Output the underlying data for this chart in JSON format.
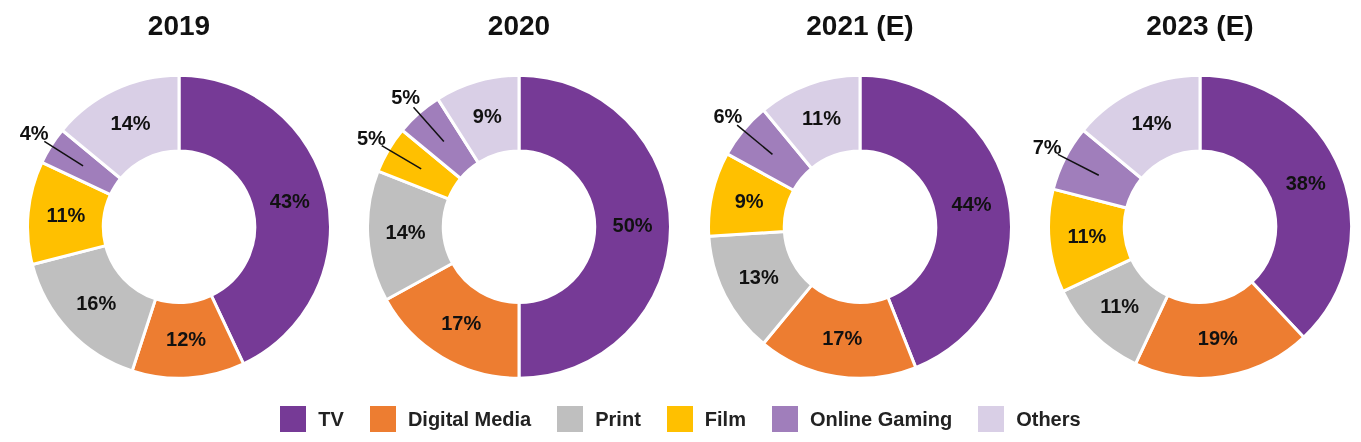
{
  "chart_data": [
    {
      "type": "donut",
      "title": "2019",
      "categories": [
        "TV",
        "Digital Media",
        "Print",
        "Film",
        "Online Gaming",
        "Others"
      ],
      "values": [
        43,
        12,
        16,
        11,
        4,
        14
      ],
      "value_labels": [
        "43%",
        "12%",
        "16%",
        "11%",
        "4%",
        "14%"
      ],
      "colors": [
        "#763a96",
        "#ed7d31",
        "#bfbfbf",
        "#ffc000",
        "#a07ebb",
        "#d9cfe6"
      ],
      "legend": "bottom"
    },
    {
      "type": "donut",
      "title": "2020",
      "categories": [
        null,
        null,
        null,
        null,
        null,
        null
      ],
      "values": [
        50,
        17,
        14,
        5,
        5,
        9
      ],
      "value_labels": [
        "50%",
        "17%",
        "14%",
        "5%",
        "5%",
        "9%"
      ],
      "colors": [
        "#763a96",
        "#ed7d31",
        "#bfbfbf",
        "#ffc000",
        "#a07ebb",
        "#d9cfe6"
      ]
    },
    {
      "type": "donut",
      "title": "2021 (E)",
      "categories": [
        null,
        null,
        null,
        null,
        null,
        null
      ],
      "values": [
        44,
        17,
        13,
        9,
        6,
        11
      ],
      "value_labels": [
        "44%",
        "17%",
        "13%",
        "9%",
        "6%",
        "11%"
      ],
      "colors": [
        "#763a96",
        "#ed7d31",
        "#bfbfbf",
        "#ffc000",
        "#a07ebb",
        "#d9cfe6"
      ]
    },
    {
      "type": "donut",
      "title": "2023 (E)",
      "categories": [
        null,
        null,
        null,
        null,
        null,
        null
      ],
      "values": [
        38,
        19,
        11,
        11,
        7,
        14
      ],
      "value_labels": [
        "38%",
        "19%",
        "11%",
        "11%",
        "7%",
        "14%"
      ],
      "colors": [
        "#763a96",
        "#ed7d31",
        "#bfbfbf",
        "#ffc000",
        "#a07ebb",
        "#d9cfe6"
      ]
    }
  ]
}
